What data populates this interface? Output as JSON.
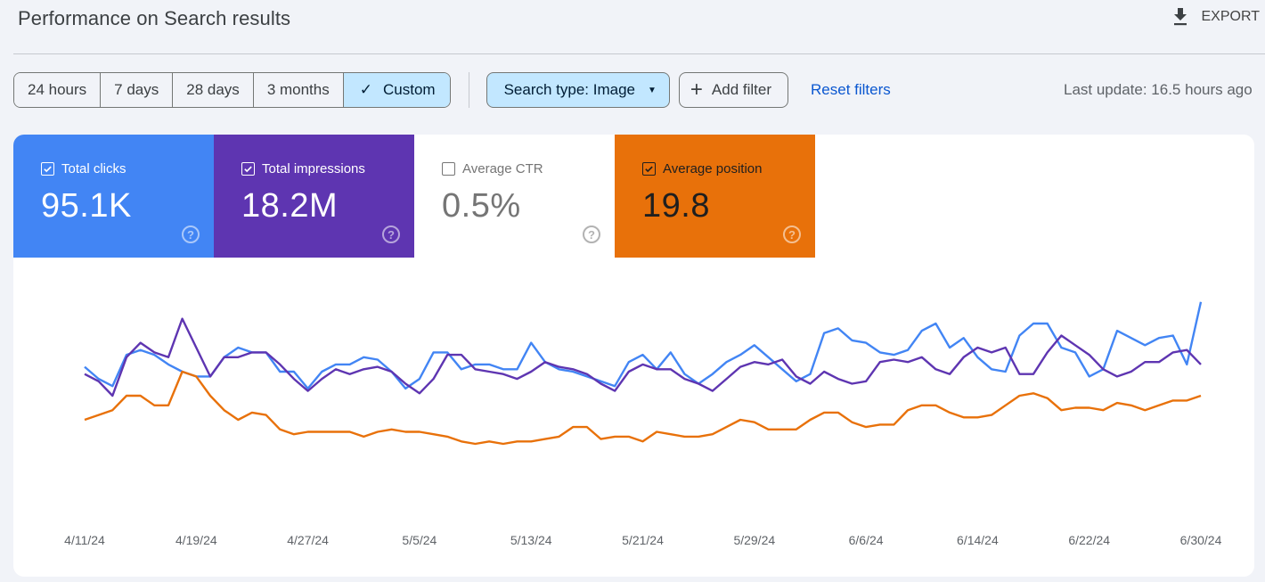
{
  "header": {
    "title": "Performance on Search results",
    "export_label": "EXPORT",
    "export_icon": "download-icon"
  },
  "toolbar": {
    "date_ranges": [
      {
        "label": "24 hours",
        "active": false
      },
      {
        "label": "7 days",
        "active": false
      },
      {
        "label": "28 days",
        "active": false
      },
      {
        "label": "3 months",
        "active": false
      },
      {
        "label": "Custom",
        "active": true
      }
    ],
    "check_icon": "✓",
    "search_type_label": "Search type: Image",
    "add_filter_label": "Add filter",
    "reset_filters_label": "Reset filters",
    "last_update": "Last update: 16.5 hours ago"
  },
  "metrics": [
    {
      "label": "Total clicks",
      "value": "95.1K",
      "checked": true,
      "color": "#4285f4"
    },
    {
      "label": "Total impressions",
      "value": "18.2M",
      "checked": true,
      "color": "#5e35b1"
    },
    {
      "label": "Average CTR",
      "value": "0.5%",
      "checked": false,
      "color": "#ffffff"
    },
    {
      "label": "Average position",
      "value": "19.8",
      "checked": true,
      "color": "#e8710a"
    }
  ],
  "help_glyph": "?",
  "chart_data": {
    "type": "line",
    "title": "Performance on Search results",
    "xlabel": "",
    "ylabel": "",
    "grid": false,
    "legend_position": "metric cards (top)",
    "date_start": "4/11/24",
    "date_end": "6/30/24",
    "tick_labels": [
      "4/11/24",
      "4/19/24",
      "4/27/24",
      "5/5/24",
      "5/13/24",
      "5/21/24",
      "5/29/24",
      "6/6/24",
      "6/14/24",
      "6/22/24",
      "6/30/24"
    ],
    "note": "No y-axis shown; values are relative heights (0-100) read from pixel positions for each day from 4/11/24 to 6/30/24 (81 points).",
    "series": [
      {
        "name": "Total clicks",
        "color": "#4285f4",
        "values": [
          62,
          57,
          54,
          67,
          69,
          67,
          63,
          60,
          58,
          58,
          66,
          70,
          68,
          68,
          60,
          60,
          53,
          60,
          63,
          63,
          66,
          65,
          60,
          53,
          57,
          68,
          68,
          61,
          63,
          63,
          61,
          61,
          72,
          64,
          61,
          60,
          58,
          56,
          54,
          64,
          67,
          61,
          68,
          59,
          55,
          59,
          64,
          67,
          71,
          66,
          61,
          56,
          59,
          76,
          78,
          73,
          72,
          68,
          67,
          69,
          77,
          80,
          70,
          74,
          66,
          61,
          60,
          75,
          80,
          80,
          70,
          68,
          58,
          61,
          77,
          74,
          71,
          74,
          75,
          63,
          89
        ]
      },
      {
        "name": "Total impressions",
        "color": "#5e35b1",
        "values": [
          59,
          56,
          50,
          66,
          72,
          68,
          66,
          82,
          70,
          58,
          66,
          66,
          68,
          68,
          63,
          57,
          52,
          57,
          61,
          59,
          61,
          62,
          60,
          55,
          51,
          57,
          67,
          67,
          61,
          60,
          59,
          57,
          60,
          64,
          62,
          61,
          59,
          55,
          52,
          60,
          63,
          61,
          61,
          57,
          55,
          52,
          57,
          62,
          64,
          63,
          65,
          58,
          55,
          60,
          57,
          55,
          56,
          64,
          65,
          64,
          66,
          61,
          59,
          66,
          70,
          68,
          70,
          59,
          59,
          68,
          75,
          71,
          67,
          61,
          58,
          60,
          64,
          64,
          68,
          69,
          63
        ]
      },
      {
        "name": "Average position",
        "color": "#e8710a",
        "values": [
          40,
          42,
          44,
          50,
          50,
          46,
          46,
          60,
          58,
          50,
          44,
          40,
          43,
          42,
          36,
          34,
          35,
          35,
          35,
          35,
          33,
          35,
          36,
          35,
          35,
          34,
          33,
          31,
          30,
          31,
          30,
          31,
          31,
          32,
          33,
          37,
          37,
          32,
          33,
          33,
          31,
          35,
          34,
          33,
          33,
          34,
          37,
          40,
          39,
          36,
          36,
          36,
          40,
          43,
          43,
          39,
          37,
          38,
          38,
          44,
          46,
          46,
          43,
          41,
          41,
          42,
          46,
          50,
          51,
          49,
          44,
          45,
          45,
          44,
          47,
          46,
          44,
          46,
          48,
          48,
          50
        ]
      }
    ]
  }
}
